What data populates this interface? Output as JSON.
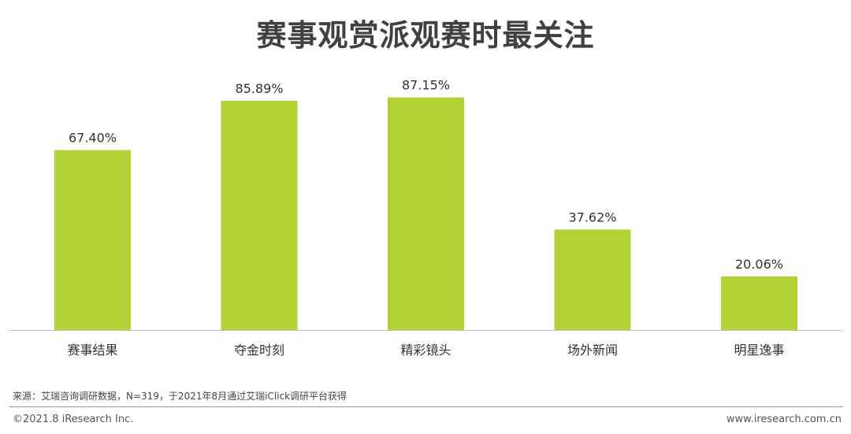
{
  "chart_data": {
    "type": "bar",
    "title": "赛事观赏派观赛时最关注",
    "categories": [
      "赛事结果",
      "夺金时刻",
      "精彩镜头",
      "场外新闻",
      "明星逸事"
    ],
    "values": [
      67.4,
      85.89,
      87.15,
      37.62,
      20.06
    ],
    "value_labels": [
      "67.40%",
      "85.89%",
      "87.15%",
      "37.62%",
      "20.06%"
    ],
    "ylim": [
      0,
      100
    ],
    "grid": false,
    "legend": "none",
    "bar_color": "#b2d235",
    "axis_color": "#bfbfbf"
  },
  "footer": {
    "source": "来源：艾瑞咨询调研数据，N=319，于2021年8月通过艾瑞iClick调研平台获得",
    "copyright": "©2021.8 iResearch Inc.",
    "website": "www.iresearch.com.cn"
  }
}
